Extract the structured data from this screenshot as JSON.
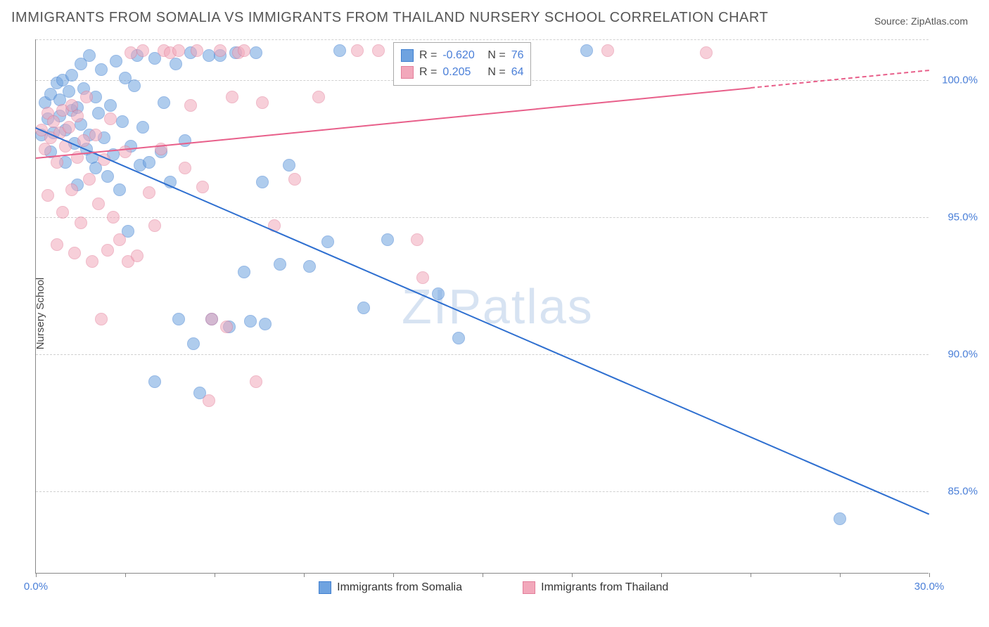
{
  "title": "IMMIGRANTS FROM SOMALIA VS IMMIGRANTS FROM THAILAND NURSERY SCHOOL CORRELATION CHART",
  "source_prefix": "Source: ",
  "source_name": "ZipAtlas.com",
  "y_axis_label": "Nursery School",
  "watermark": "ZIPatlas",
  "chart": {
    "type": "scatter",
    "xlim": [
      0,
      30
    ],
    "ylim": [
      82,
      101.5
    ],
    "x_ticks": [
      0,
      30
    ],
    "x_tick_labels": [
      "0.0%",
      "30.0%"
    ],
    "x_minor_ticks": [
      3,
      6,
      9,
      12,
      15,
      18,
      21,
      24,
      27
    ],
    "y_ticks": [
      85,
      90,
      95,
      100
    ],
    "y_tick_labels": [
      "85.0%",
      "90.0%",
      "95.0%",
      "100.0%"
    ],
    "grid_color": "#d0d0d0",
    "background_color": "#ffffff",
    "marker_radius": 9,
    "marker_opacity": 0.55,
    "series": [
      {
        "name": "Immigrants from Somalia",
        "color": "#6fa3e0",
        "stroke": "#3f7fd0",
        "line_color": "#2e6fd0",
        "R": "-0.620",
        "N": "76",
        "trend": {
          "x1": 0,
          "y1": 98.3,
          "x2": 30,
          "y2": 84.2
        },
        "points": [
          [
            0.2,
            98.0
          ],
          [
            0.3,
            99.2
          ],
          [
            0.4,
            98.6
          ],
          [
            0.5,
            97.4
          ],
          [
            0.5,
            99.5
          ],
          [
            0.6,
            98.1
          ],
          [
            0.7,
            99.9
          ],
          [
            0.8,
            98.7
          ],
          [
            0.8,
            99.3
          ],
          [
            0.9,
            100.0
          ],
          [
            1.0,
            97.0
          ],
          [
            1.0,
            98.2
          ],
          [
            1.1,
            99.6
          ],
          [
            1.2,
            98.9
          ],
          [
            1.2,
            100.2
          ],
          [
            1.3,
            97.7
          ],
          [
            1.4,
            99.0
          ],
          [
            1.4,
            96.2
          ],
          [
            1.5,
            100.6
          ],
          [
            1.5,
            98.4
          ],
          [
            1.6,
            99.7
          ],
          [
            1.7,
            97.5
          ],
          [
            1.8,
            100.9
          ],
          [
            1.8,
            98.0
          ],
          [
            1.9,
            97.2
          ],
          [
            2.0,
            99.4
          ],
          [
            2.0,
            96.8
          ],
          [
            2.1,
            98.8
          ],
          [
            2.2,
            100.4
          ],
          [
            2.3,
            97.9
          ],
          [
            2.4,
            96.5
          ],
          [
            2.5,
            99.1
          ],
          [
            2.6,
            97.3
          ],
          [
            2.7,
            100.7
          ],
          [
            2.8,
            96.0
          ],
          [
            2.9,
            98.5
          ],
          [
            3.0,
            100.1
          ],
          [
            3.1,
            94.5
          ],
          [
            3.2,
            97.6
          ],
          [
            3.3,
            99.8
          ],
          [
            3.4,
            100.9
          ],
          [
            3.5,
            96.9
          ],
          [
            3.6,
            98.3
          ],
          [
            3.8,
            97.0
          ],
          [
            4.0,
            100.8
          ],
          [
            4.0,
            89.0
          ],
          [
            4.2,
            97.4
          ],
          [
            4.3,
            99.2
          ],
          [
            4.5,
            96.3
          ],
          [
            4.7,
            100.6
          ],
          [
            4.8,
            91.3
          ],
          [
            5.0,
            97.8
          ],
          [
            5.2,
            101.0
          ],
          [
            5.3,
            90.4
          ],
          [
            5.5,
            88.6
          ],
          [
            5.8,
            100.9
          ],
          [
            5.9,
            91.3
          ],
          [
            6.2,
            100.9
          ],
          [
            6.5,
            91.0
          ],
          [
            6.7,
            101.0
          ],
          [
            7.0,
            93.0
          ],
          [
            7.2,
            91.2
          ],
          [
            7.4,
            101.0
          ],
          [
            7.6,
            96.3
          ],
          [
            7.7,
            91.1
          ],
          [
            8.2,
            93.3
          ],
          [
            8.5,
            96.9
          ],
          [
            9.2,
            93.2
          ],
          [
            9.8,
            94.1
          ],
          [
            10.2,
            101.1
          ],
          [
            11.0,
            91.7
          ],
          [
            11.8,
            94.2
          ],
          [
            13.5,
            92.2
          ],
          [
            14.2,
            90.6
          ],
          [
            18.5,
            101.1
          ],
          [
            27.0,
            84.0
          ]
        ]
      },
      {
        "name": "Immigrants from Thailand",
        "color": "#f2a8bb",
        "stroke": "#e37f9b",
        "line_color": "#e85f8a",
        "R": "0.205",
        "N": "64",
        "trend": {
          "x1": 0,
          "y1": 97.2,
          "x2": 30,
          "y2": 100.4
        },
        "trend_dash_after_x": 24,
        "points": [
          [
            0.2,
            98.2
          ],
          [
            0.3,
            97.5
          ],
          [
            0.4,
            98.8
          ],
          [
            0.4,
            95.8
          ],
          [
            0.5,
            97.9
          ],
          [
            0.6,
            98.5
          ],
          [
            0.7,
            97.0
          ],
          [
            0.7,
            94.0
          ],
          [
            0.8,
            98.1
          ],
          [
            0.9,
            98.9
          ],
          [
            0.9,
            95.2
          ],
          [
            1.0,
            97.6
          ],
          [
            1.1,
            98.3
          ],
          [
            1.2,
            96.0
          ],
          [
            1.2,
            99.1
          ],
          [
            1.3,
            93.7
          ],
          [
            1.4,
            97.2
          ],
          [
            1.4,
            98.7
          ],
          [
            1.5,
            94.8
          ],
          [
            1.6,
            97.8
          ],
          [
            1.7,
            99.4
          ],
          [
            1.8,
            96.4
          ],
          [
            1.9,
            93.4
          ],
          [
            2.0,
            98.0
          ],
          [
            2.1,
            95.5
          ],
          [
            2.2,
            91.3
          ],
          [
            2.3,
            97.1
          ],
          [
            2.4,
            93.8
          ],
          [
            2.5,
            98.6
          ],
          [
            2.6,
            95.0
          ],
          [
            2.8,
            94.2
          ],
          [
            3.0,
            97.4
          ],
          [
            3.1,
            93.4
          ],
          [
            3.2,
            101.0
          ],
          [
            3.4,
            93.6
          ],
          [
            3.6,
            101.1
          ],
          [
            3.8,
            95.9
          ],
          [
            4.0,
            94.7
          ],
          [
            4.2,
            97.5
          ],
          [
            4.3,
            101.1
          ],
          [
            4.5,
            101.0
          ],
          [
            4.8,
            101.1
          ],
          [
            5.0,
            96.8
          ],
          [
            5.2,
            99.1
          ],
          [
            5.4,
            101.1
          ],
          [
            5.6,
            96.1
          ],
          [
            5.8,
            88.3
          ],
          [
            5.9,
            91.3
          ],
          [
            6.2,
            101.1
          ],
          [
            6.4,
            91.0
          ],
          [
            6.6,
            99.4
          ],
          [
            6.8,
            101.0
          ],
          [
            7.0,
            101.1
          ],
          [
            7.4,
            89.0
          ],
          [
            7.6,
            99.2
          ],
          [
            8.0,
            94.7
          ],
          [
            8.7,
            96.4
          ],
          [
            9.5,
            99.4
          ],
          [
            10.8,
            101.1
          ],
          [
            11.5,
            101.1
          ],
          [
            12.8,
            94.2
          ],
          [
            13.0,
            92.8
          ],
          [
            19.2,
            101.1
          ],
          [
            22.5,
            101.0
          ]
        ]
      }
    ]
  },
  "legend_top": {
    "R_label": "R =",
    "N_label": "N ="
  },
  "bottom_legend_series": [
    "Immigrants from Somalia",
    "Immigrants from Thailand"
  ]
}
